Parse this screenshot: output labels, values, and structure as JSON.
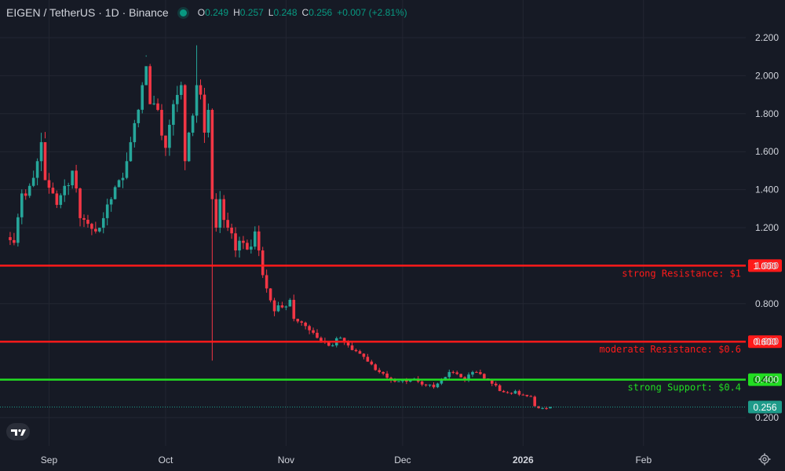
{
  "header": {
    "symbol": "EIGEN / TetherUS · 1D · Binance",
    "o_label": "O",
    "o_value": "0.249",
    "h_label": "H",
    "h_value": "0.257",
    "l_label": "L",
    "l_value": "0.248",
    "c_label": "C",
    "c_value": "0.256",
    "change": "+0.007 (+2.81%)"
  },
  "colors": {
    "background": "#161a25",
    "up": "#26a69a",
    "down": "#f23645",
    "resistance": "#ff1a1a",
    "support": "#22dd22",
    "last_price": "#1e9b8a"
  },
  "icons": {
    "logo": "tradingview-logo-icon",
    "settings": "gear-icon"
  },
  "chart_data": {
    "type": "candlestick",
    "title": "",
    "y_ticks": [
      "2.200",
      "2.000",
      "1.800",
      "1.600",
      "1.400",
      "1.200",
      "1.000",
      "0.800",
      "0.600",
      "0.400",
      "0.200"
    ],
    "y_range": [
      0.15,
      2.25
    ],
    "x_labels": [
      {
        "label": "Sep",
        "day": 11
      },
      {
        "label": "Oct",
        "day": 41
      },
      {
        "label": "Nov",
        "day": 72
      },
      {
        "label": "Dec",
        "day": 102
      },
      {
        "label": "2026",
        "day": 133
      },
      {
        "label": "Feb",
        "day": 164
      }
    ],
    "grid": true,
    "horizontal_levels": [
      {
        "label": "strong Resistance: $1",
        "price": 1.0,
        "price_label": "1.000",
        "kind": "resistance"
      },
      {
        "label": "moderate Resistance: $0.6",
        "price": 0.6,
        "price_label": "0.600",
        "kind": "resistance"
      },
      {
        "label": "strong Support: $0.4",
        "price": 0.4,
        "price_label": "0.400",
        "kind": "support"
      }
    ],
    "last_price": {
      "value": 0.256,
      "label": "0.256"
    },
    "anchors": [
      [
        0,
        1.15
      ],
      [
        2,
        1.12
      ],
      [
        4,
        1.38
      ],
      [
        6,
        1.42
      ],
      [
        8,
        1.55
      ],
      [
        9,
        1.65
      ],
      [
        10,
        1.45
      ],
      [
        12,
        1.38
      ],
      [
        13,
        1.32
      ],
      [
        15,
        1.42
      ],
      [
        17,
        1.5
      ],
      [
        19,
        1.25
      ],
      [
        21,
        1.22
      ],
      [
        23,
        1.18
      ],
      [
        25,
        1.25
      ],
      [
        27,
        1.35
      ],
      [
        29,
        1.45
      ],
      [
        31,
        1.55
      ],
      [
        33,
        1.75
      ],
      [
        35,
        1.95
      ],
      [
        36,
        2.05
      ],
      [
        37,
        1.85
      ],
      [
        39,
        1.82
      ],
      [
        41,
        1.62
      ],
      [
        43,
        1.85
      ],
      [
        45,
        1.95
      ],
      [
        46,
        1.55
      ],
      [
        47,
        1.7
      ],
      [
        49,
        1.95
      ],
      [
        50,
        1.9
      ],
      [
        51,
        1.7
      ],
      [
        52,
        1.82
      ],
      [
        53,
        1.35
      ],
      [
        54,
        1.2
      ],
      [
        55,
        1.35
      ],
      [
        57,
        1.2
      ],
      [
        59,
        1.08
      ],
      [
        61,
        1.12
      ],
      [
        63,
        1.1
      ],
      [
        64,
        1.18
      ],
      [
        65,
        1.08
      ],
      [
        66,
        0.95
      ],
      [
        67,
        0.88
      ],
      [
        69,
        0.76
      ],
      [
        71,
        0.78
      ],
      [
        73,
        0.82
      ],
      [
        74,
        0.72
      ],
      [
        76,
        0.7
      ],
      [
        78,
        0.66
      ],
      [
        80,
        0.62
      ],
      [
        82,
        0.6
      ],
      [
        84,
        0.58
      ],
      [
        86,
        0.62
      ],
      [
        88,
        0.58
      ],
      [
        90,
        0.55
      ],
      [
        92,
        0.52
      ],
      [
        94,
        0.48
      ],
      [
        96,
        0.44
      ],
      [
        98,
        0.41
      ],
      [
        100,
        0.39
      ],
      [
        102,
        0.4
      ],
      [
        104,
        0.4
      ],
      [
        106,
        0.39
      ],
      [
        108,
        0.37
      ],
      [
        110,
        0.36
      ],
      [
        112,
        0.4
      ],
      [
        114,
        0.44
      ],
      [
        116,
        0.43
      ],
      [
        118,
        0.4
      ],
      [
        120,
        0.44
      ],
      [
        122,
        0.43
      ],
      [
        124,
        0.4
      ],
      [
        126,
        0.37
      ],
      [
        127,
        0.34
      ],
      [
        129,
        0.33
      ],
      [
        131,
        0.34
      ],
      [
        133,
        0.32
      ],
      [
        135,
        0.31
      ],
      [
        136,
        0.26
      ],
      [
        137,
        0.25
      ],
      [
        138,
        0.25
      ],
      [
        139,
        0.249
      ],
      [
        140,
        0.256
      ]
    ]
  }
}
